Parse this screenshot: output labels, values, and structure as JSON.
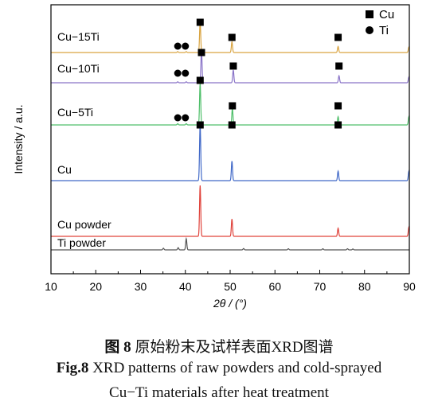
{
  "chart_data": {
    "type": "line",
    "xlabel": "2θ / (°)",
    "ylabel": "Intensity / a.u.",
    "xlim": [
      10,
      90
    ],
    "x_ticks": [
      "10",
      "20",
      "30",
      "40",
      "50",
      "60",
      "70",
      "80",
      "90"
    ],
    "grid": false,
    "legend": {
      "placement": "top-right",
      "entries": [
        {
          "marker": "square",
          "label": "Cu"
        },
        {
          "marker": "circle",
          "label": "Ti"
        }
      ]
    },
    "series": [
      {
        "name": "Cu−15Ti",
        "color": "#d9a441",
        "peaks": [
          {
            "x": 38.3,
            "h": 0.03
          },
          {
            "x": 40.2,
            "h": 0.03
          },
          {
            "x": 43.3,
            "h": 1.0
          },
          {
            "x": 50.4,
            "h": 0.35
          },
          {
            "x": 74.1,
            "h": 0.2
          },
          {
            "x": 89.9,
            "h": 0.18
          }
        ],
        "markers": [
          {
            "type": "circle",
            "x": 38.3
          },
          {
            "type": "circle",
            "x": 40.0
          },
          {
            "type": "square",
            "x": 43.3
          },
          {
            "type": "square",
            "x": 50.4
          },
          {
            "type": "square",
            "x": 74.1
          }
        ]
      },
      {
        "name": "Cu−10Ti",
        "color": "#8a74c8",
        "peaks": [
          {
            "x": 38.3,
            "h": 0.03
          },
          {
            "x": 40.2,
            "h": 0.03
          },
          {
            "x": 43.6,
            "h": 1.0
          },
          {
            "x": 50.7,
            "h": 0.4
          },
          {
            "x": 74.3,
            "h": 0.22
          },
          {
            "x": 89.9,
            "h": 0.18
          }
        ],
        "markers": [
          {
            "type": "circle",
            "x": 38.3
          },
          {
            "type": "circle",
            "x": 40.0
          },
          {
            "type": "square",
            "x": 43.6
          },
          {
            "type": "square",
            "x": 50.7
          },
          {
            "type": "square",
            "x": 74.3
          }
        ]
      },
      {
        "name": "Cu−5Ti",
        "color": "#4fbf6a",
        "peaks": [
          {
            "x": 38.3,
            "h": 0.03
          },
          {
            "x": 40.2,
            "h": 0.03
          },
          {
            "x": 43.3,
            "h": 1.0
          },
          {
            "x": 50.5,
            "h": 0.4
          },
          {
            "x": 74.1,
            "h": 0.2
          },
          {
            "x": 89.9,
            "h": 0.2
          }
        ],
        "markers": [
          {
            "type": "circle",
            "x": 38.3
          },
          {
            "type": "circle",
            "x": 40.0
          },
          {
            "type": "square",
            "x": 43.3
          },
          {
            "type": "square",
            "x": 50.5
          },
          {
            "type": "square",
            "x": 74.1
          }
        ]
      },
      {
        "name": "Cu",
        "color": "#4169c8",
        "peaks": [
          {
            "x": 43.3,
            "h": 1.0
          },
          {
            "x": 50.4,
            "h": 0.35
          },
          {
            "x": 74.1,
            "h": 0.17
          },
          {
            "x": 89.9,
            "h": 0.17
          }
        ],
        "markers": [
          {
            "type": "square",
            "x": 43.3
          },
          {
            "type": "square",
            "x": 50.4
          },
          {
            "type": "square",
            "x": 74.1
          }
        ]
      },
      {
        "name": "Cu powder",
        "color": "#e0433b",
        "peaks": [
          {
            "x": 43.3,
            "h": 1.0
          },
          {
            "x": 50.4,
            "h": 0.34
          },
          {
            "x": 74.1,
            "h": 0.16
          },
          {
            "x": 89.9,
            "h": 0.18
          }
        ],
        "markers": []
      },
      {
        "name": "Ti powder",
        "color": "#555555",
        "peaks": [
          {
            "x": 35.1,
            "h": 0.15
          },
          {
            "x": 38.4,
            "h": 0.2
          },
          {
            "x": 40.2,
            "h": 1.0
          },
          {
            "x": 53.0,
            "h": 0.12
          },
          {
            "x": 63.0,
            "h": 0.1
          },
          {
            "x": 70.7,
            "h": 0.1
          },
          {
            "x": 76.2,
            "h": 0.1
          },
          {
            "x": 77.4,
            "h": 0.08
          }
        ],
        "markers": []
      }
    ]
  },
  "caption": {
    "zh_prefix": "图 8",
    "zh_text": " 原始粉末及试样表面XRD图谱",
    "en_prefix": "Fig.8",
    "en_text_line1": " XRD patterns of raw powders and cold-sprayed",
    "en_text_line2": "Cu−Ti materials after heat treatment"
  }
}
